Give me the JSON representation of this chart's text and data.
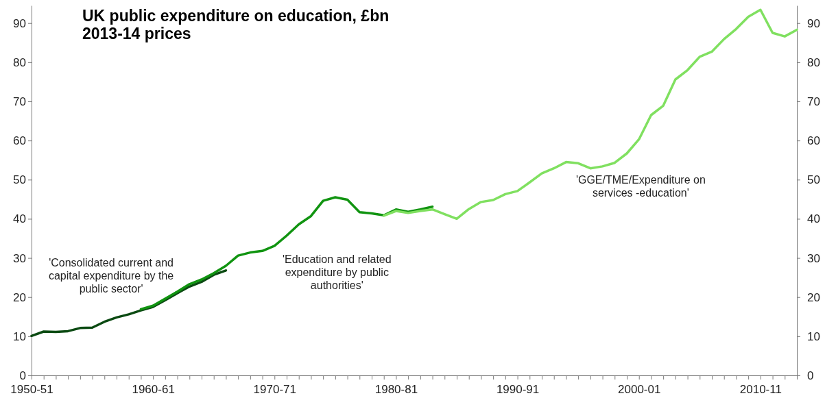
{
  "chart_data": {
    "type": "line",
    "title": "UK public expenditure on education, £bn 2013-14 prices",
    "categories": [
      "1950-51",
      null,
      null,
      null,
      null,
      null,
      null,
      null,
      null,
      null,
      "1960-61",
      null,
      null,
      null,
      null,
      null,
      null,
      null,
      null,
      null,
      "1970-71",
      null,
      null,
      null,
      null,
      null,
      null,
      null,
      null,
      null,
      "1980-81",
      null,
      null,
      null,
      null,
      null,
      null,
      null,
      null,
      null,
      "1990-91",
      null,
      null,
      null,
      null,
      null,
      null,
      null,
      null,
      null,
      "2000-01",
      null,
      null,
      null,
      null,
      null,
      null,
      null,
      null,
      null,
      "2010-11",
      null,
      null,
      null
    ],
    "ylim": [
      0,
      94.5
    ],
    "yticks": [
      0,
      10,
      20,
      30,
      40,
      50,
      60,
      70,
      80,
      90
    ],
    "y2lim": [
      0,
      94.5
    ],
    "y2ticks": [
      0,
      10,
      20,
      30,
      40,
      50,
      60,
      70,
      80,
      90
    ],
    "marker": "none",
    "line_style": "solid",
    "series": [
      {
        "color": "#0b4a12",
        "values": [
          10.1,
          11.2,
          11.1,
          11.3,
          12.1,
          12.2,
          13.7,
          14.8,
          15.6,
          16.6,
          17.5,
          19.2,
          21.0,
          22.7,
          23.9,
          25.7,
          26.8,
          null,
          null,
          null,
          null,
          null,
          null,
          null,
          null,
          null,
          null,
          null,
          null,
          null,
          null,
          null,
          null,
          null,
          null,
          null,
          null,
          null,
          null,
          null,
          null,
          null,
          null,
          null,
          null,
          null,
          null,
          null,
          null,
          null,
          null,
          null,
          null,
          null,
          null,
          null,
          null,
          null,
          null,
          null,
          null,
          null,
          null,
          null
        ]
      },
      {
        "color": "#119411",
        "values": [
          null,
          null,
          null,
          null,
          null,
          null,
          null,
          null,
          null,
          16.9,
          17.8,
          19.6,
          21.4,
          23.3,
          24.5,
          26.1,
          28.0,
          30.6,
          31.4,
          31.8,
          33.1,
          35.7,
          38.6,
          40.7,
          44.6,
          45.5,
          44.9,
          41.7,
          41.4,
          40.9,
          42.4,
          41.8,
          42.4,
          43.1,
          null,
          null,
          null,
          null,
          null,
          null,
          null,
          null,
          null,
          null,
          null,
          null,
          null,
          null,
          null,
          null,
          null,
          null,
          null,
          null,
          null,
          null,
          null,
          null,
          null,
          null,
          null,
          null,
          null,
          null
        ]
      },
      {
        "color": "#80e060",
        "values": [
          null,
          null,
          null,
          null,
          null,
          null,
          null,
          null,
          null,
          null,
          null,
          null,
          null,
          null,
          null,
          null,
          null,
          null,
          null,
          null,
          null,
          null,
          null,
          null,
          null,
          null,
          null,
          null,
          null,
          40.8,
          42.0,
          41.5,
          42.0,
          42.4,
          41.2,
          40.0,
          42.5,
          44.3,
          44.8,
          46.3,
          47.1,
          49.3,
          51.6,
          52.9,
          54.5,
          54.2,
          52.9,
          53.4,
          54.3,
          56.7,
          60.3,
          66.5,
          68.9,
          75.6,
          78.0,
          81.4,
          82.7,
          85.9,
          88.5,
          91.6,
          93.4,
          87.5,
          86.6,
          88.3
        ]
      }
    ],
    "annotations": [
      "'Consolidated current and capital expenditure by the public sector'",
      "'Education and related expenditure by public authorities'",
      "'GGE/TME/Expenditure on services -education'"
    ]
  }
}
